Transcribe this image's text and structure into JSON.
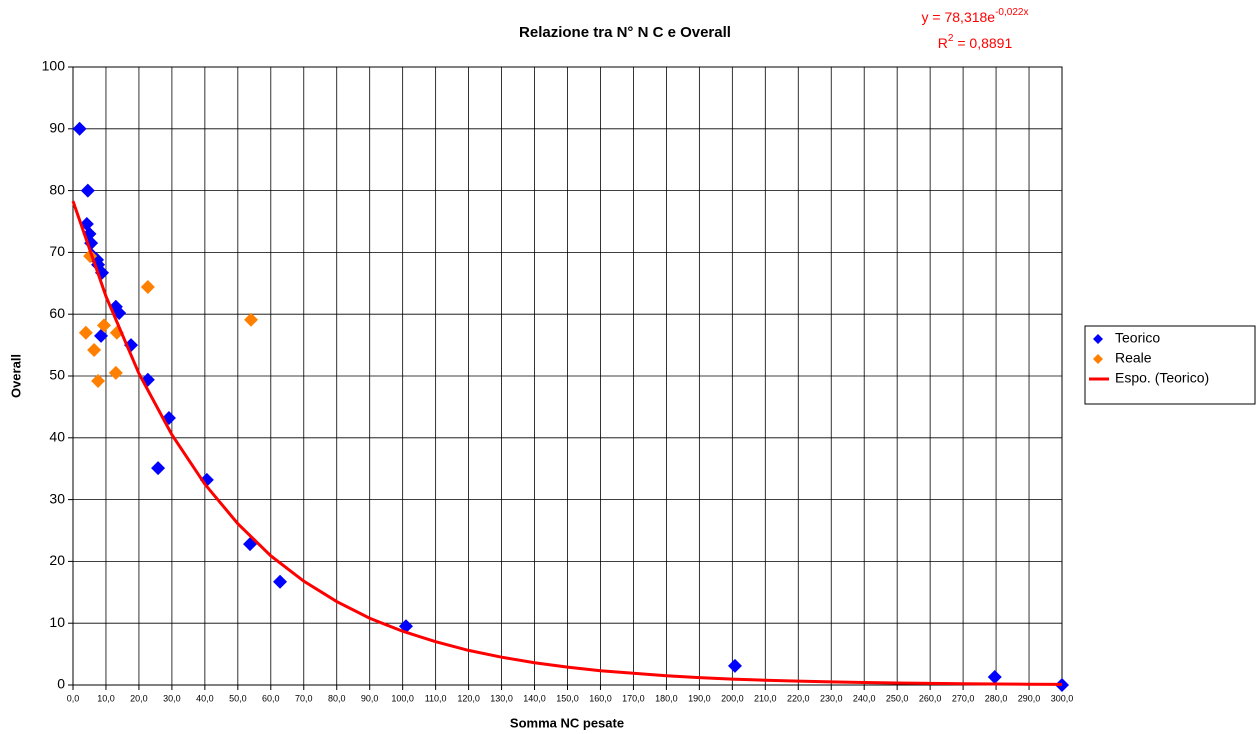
{
  "chart_data": {
    "type": "scatter",
    "title": "Relazione tra N° N C e Overall",
    "x_label": "Somma NC pesate",
    "y_label": "Overall",
    "trendline_equation": {
      "base": "y = 78,318e",
      "exponent": "-0,022x",
      "color": "#ff0000"
    },
    "trendline_r2": {
      "base": "R",
      "exponent": "2",
      "rest": " = 0,8891",
      "color": "#ff0000"
    },
    "xlim": [
      0,
      300
    ],
    "ylim": [
      0,
      100
    ],
    "xticks": [
      {
        "value": 0,
        "label": "0,0"
      },
      {
        "value": 10,
        "label": "10,0"
      },
      {
        "value": 20,
        "label": "20,0"
      },
      {
        "value": 30,
        "label": "30,0"
      },
      {
        "value": 40,
        "label": "40,0"
      },
      {
        "value": 50,
        "label": "50,0"
      },
      {
        "value": 60,
        "label": "60,0"
      },
      {
        "value": 70,
        "label": "70,0"
      },
      {
        "value": 80,
        "label": "80,0"
      },
      {
        "value": 90,
        "label": "90,0"
      },
      {
        "value": 100,
        "label": "100,0"
      },
      {
        "value": 110,
        "label": "110,0"
      },
      {
        "value": 120,
        "label": "120,0"
      },
      {
        "value": 130,
        "label": "130,0"
      },
      {
        "value": 140,
        "label": "140,0"
      },
      {
        "value": 150,
        "label": "150,0"
      },
      {
        "value": 160,
        "label": "160,0"
      },
      {
        "value": 170,
        "label": "170,0"
      },
      {
        "value": 180,
        "label": "180,0"
      },
      {
        "value": 190,
        "label": "190,0"
      },
      {
        "value": 200,
        "label": "200,0"
      },
      {
        "value": 210,
        "label": "210,0"
      },
      {
        "value": 220,
        "label": "220,0"
      },
      {
        "value": 230,
        "label": "230,0"
      },
      {
        "value": 240,
        "label": "240,0"
      },
      {
        "value": 250,
        "label": "250,0"
      },
      {
        "value": 260,
        "label": "260,0"
      },
      {
        "value": 270,
        "label": "270,0"
      },
      {
        "value": 280,
        "label": "280,0"
      },
      {
        "value": 290,
        "label": "290,0"
      },
      {
        "value": 300,
        "label": "300,0"
      }
    ],
    "yticks": [
      0,
      10,
      20,
      30,
      40,
      50,
      60,
      70,
      80,
      90,
      100
    ],
    "grid": true,
    "legend": "right",
    "series": [
      {
        "name": "Teorico",
        "color": "#0000ff",
        "mode": "markers",
        "x": [
          2,
          4.5,
          4.2,
          5,
          5.5,
          5.8,
          7.3,
          7.6,
          8.8,
          8.5,
          13,
          14,
          17.6,
          22.7,
          25.8,
          29.1,
          40.6,
          53.7,
          62.8,
          101,
          200.8,
          279.6,
          300
        ],
        "values": [
          90,
          80,
          74.6,
          73,
          71.5,
          69.5,
          68.8,
          68,
          66.7,
          56.5,
          61.2,
          60.2,
          55,
          49.4,
          35.1,
          43.2,
          33.2,
          22.8,
          16.7,
          9.5,
          3.1,
          1.3,
          0
        ]
      },
      {
        "name": "Reale",
        "color": "#ff8000",
        "mode": "markers",
        "x": [
          3.9,
          5.2,
          6.4,
          7.6,
          9.4,
          13,
          13.3,
          22.7,
          54
        ],
        "values": [
          57,
          69.4,
          54.2,
          49.2,
          58.2,
          50.5,
          57,
          64.4,
          59.1
        ]
      },
      {
        "name": "Espo. (Teorico)",
        "color": "#ff0000",
        "mode": "line",
        "x": [
          0,
          10,
          20,
          30,
          40,
          50,
          60,
          70,
          80,
          90,
          100,
          110,
          120,
          130,
          140,
          150,
          160,
          170,
          180,
          190,
          200,
          210,
          220,
          230,
          240,
          250,
          260,
          270,
          280,
          290,
          300
        ],
        "values": [
          78.3,
          62.9,
          50.4,
          40.5,
          32.5,
          26.1,
          20.9,
          16.8,
          13.5,
          10.8,
          8.7,
          7.0,
          5.6,
          4.5,
          3.6,
          2.9,
          2.3,
          1.9,
          1.5,
          1.2,
          0.96,
          0.77,
          0.62,
          0.5,
          0.4,
          0.32,
          0.26,
          0.21,
          0.17,
          0.13,
          0.11
        ]
      }
    ]
  }
}
